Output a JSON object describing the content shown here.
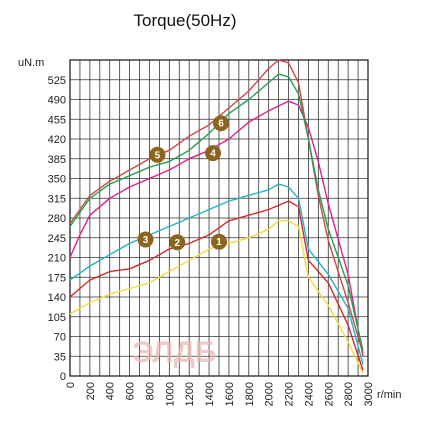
{
  "chart_data": {
    "type": "line",
    "title": "Torque(50Hz)",
    "ylabel": "uN.m",
    "xlabel": "r/min",
    "xlim": [
      0,
      3000
    ],
    "ylim": [
      0,
      560
    ],
    "x_ticks": [
      0,
      200,
      400,
      600,
      800,
      1000,
      1200,
      1400,
      1600,
      1800,
      2000,
      2200,
      2400,
      2600,
      2800,
      3000
    ],
    "y_ticks": [
      0,
      35,
      70,
      105,
      140,
      175,
      210,
      245,
      280,
      315,
      350,
      385,
      420,
      455,
      490,
      525
    ],
    "grid": true,
    "series": [
      {
        "name": "1",
        "color": "#f2dc3a",
        "label_at": [
          1500,
          238
        ],
        "points": [
          [
            0,
            110
          ],
          [
            200,
            130
          ],
          [
            400,
            145
          ],
          [
            600,
            155
          ],
          [
            800,
            165
          ],
          [
            1000,
            185
          ],
          [
            1200,
            205
          ],
          [
            1400,
            225
          ],
          [
            1600,
            235
          ],
          [
            1800,
            245
          ],
          [
            2000,
            260
          ],
          [
            2100,
            275
          ],
          [
            2200,
            275
          ],
          [
            2300,
            265
          ],
          [
            2400,
            175
          ],
          [
            2600,
            125
          ],
          [
            2800,
            60
          ],
          [
            2950,
            5
          ]
        ]
      },
      {
        "name": "2",
        "color": "#d62828",
        "label_at": [
          1080,
          237
        ],
        "points": [
          [
            0,
            140
          ],
          [
            100,
            155
          ],
          [
            200,
            170
          ],
          [
            400,
            185
          ],
          [
            600,
            190
          ],
          [
            800,
            205
          ],
          [
            1000,
            225
          ],
          [
            1200,
            235
          ],
          [
            1400,
            250
          ],
          [
            1600,
            275
          ],
          [
            1800,
            285
          ],
          [
            2000,
            295
          ],
          [
            2200,
            310
          ],
          [
            2300,
            300
          ],
          [
            2400,
            205
          ],
          [
            2600,
            165
          ],
          [
            2800,
            90
          ],
          [
            2950,
            10
          ]
        ]
      },
      {
        "name": "3",
        "color": "#20b4c8",
        "label_at": [
          760,
          242
        ],
        "points": [
          [
            0,
            170
          ],
          [
            200,
            195
          ],
          [
            400,
            215
          ],
          [
            600,
            235
          ],
          [
            800,
            250
          ],
          [
            1000,
            265
          ],
          [
            1200,
            280
          ],
          [
            1400,
            295
          ],
          [
            1600,
            310
          ],
          [
            1800,
            320
          ],
          [
            2000,
            330
          ],
          [
            2100,
            340
          ],
          [
            2200,
            335
          ],
          [
            2300,
            315
          ],
          [
            2400,
            225
          ],
          [
            2600,
            180
          ],
          [
            2800,
            120
          ],
          [
            2950,
            20
          ]
        ]
      },
      {
        "name": "4",
        "color": "#e0208a",
        "label_at": [
          1440,
          395
        ],
        "points": [
          [
            0,
            210
          ],
          [
            100,
            250
          ],
          [
            200,
            285
          ],
          [
            400,
            315
          ],
          [
            600,
            335
          ],
          [
            800,
            350
          ],
          [
            1000,
            365
          ],
          [
            1200,
            385
          ],
          [
            1400,
            400
          ],
          [
            1600,
            420
          ],
          [
            1800,
            450
          ],
          [
            2000,
            470
          ],
          [
            2200,
            487
          ],
          [
            2300,
            480
          ],
          [
            2400,
            440
          ],
          [
            2500,
            380
          ],
          [
            2600,
            305
          ],
          [
            2800,
            180
          ],
          [
            2950,
            35
          ]
        ]
      },
      {
        "name": "5",
        "color": "#d14545",
        "label_at": [
          880,
          392
        ],
        "points": [
          [
            0,
            270
          ],
          [
            100,
            295
          ],
          [
            200,
            320
          ],
          [
            400,
            345
          ],
          [
            600,
            365
          ],
          [
            800,
            385
          ],
          [
            1000,
            400
          ],
          [
            1200,
            425
          ],
          [
            1400,
            445
          ],
          [
            1600,
            475
          ],
          [
            1800,
            505
          ],
          [
            2000,
            545
          ],
          [
            2100,
            560
          ],
          [
            2200,
            555
          ],
          [
            2300,
            520
          ],
          [
            2400,
            420
          ],
          [
            2500,
            320
          ],
          [
            2600,
            240
          ],
          [
            2800,
            130
          ],
          [
            2950,
            40
          ]
        ]
      },
      {
        "name": "6",
        "color": "#22a050",
        "label_at": [
          1520,
          448
        ],
        "points": [
          [
            0,
            265
          ],
          [
            100,
            290
          ],
          [
            200,
            315
          ],
          [
            400,
            340
          ],
          [
            600,
            355
          ],
          [
            800,
            370
          ],
          [
            1000,
            380
          ],
          [
            1200,
            400
          ],
          [
            1400,
            430
          ],
          [
            1600,
            465
          ],
          [
            1800,
            490
          ],
          [
            2000,
            520
          ],
          [
            2100,
            535
          ],
          [
            2200,
            530
          ],
          [
            2300,
            500
          ],
          [
            2400,
            420
          ],
          [
            2500,
            330
          ],
          [
            2600,
            260
          ],
          [
            2800,
            160
          ],
          [
            2950,
            45
          ]
        ]
      }
    ]
  },
  "watermark": {
    "text": "ЭЛДБ",
    "color": "#e8b8b0"
  },
  "badge_color": "#8b6420"
}
